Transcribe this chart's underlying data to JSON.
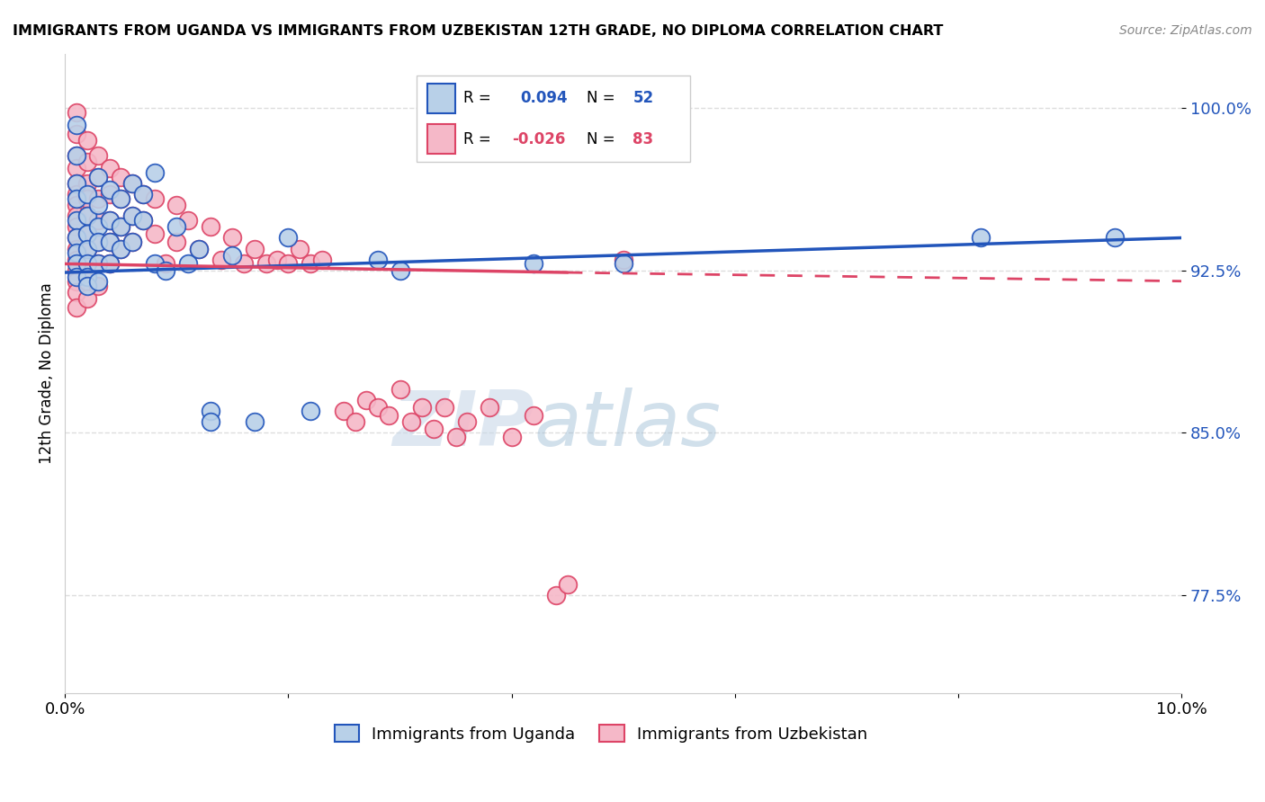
{
  "title": "IMMIGRANTS FROM UGANDA VS IMMIGRANTS FROM UZBEKISTAN 12TH GRADE, NO DIPLOMA CORRELATION CHART",
  "source": "Source: ZipAtlas.com",
  "ylabel": "12th Grade, No Diploma",
  "xlim": [
    0.0,
    0.1
  ],
  "ylim": [
    0.73,
    1.025
  ],
  "yticks": [
    0.775,
    0.85,
    0.925,
    1.0
  ],
  "ytick_labels": [
    "77.5%",
    "85.0%",
    "92.5%",
    "100.0%"
  ],
  "xticks": [
    0.0,
    0.02,
    0.04,
    0.06,
    0.08,
    0.1
  ],
  "xtick_labels": [
    "0.0%",
    "",
    "",
    "",
    "",
    "10.0%"
  ],
  "uganda_color": "#b8d0e8",
  "uzbekistan_color": "#f5b8c8",
  "uganda_line_color": "#2255bb",
  "uzbekistan_line_color": "#dd4466",
  "watermark_zip": "ZIP",
  "watermark_atlas": "atlas",
  "uganda_scatter": [
    [
      0.001,
      0.992
    ],
    [
      0.001,
      0.978
    ],
    [
      0.001,
      0.965
    ],
    [
      0.001,
      0.958
    ],
    [
      0.001,
      0.948
    ],
    [
      0.001,
      0.94
    ],
    [
      0.001,
      0.933
    ],
    [
      0.001,
      0.928
    ],
    [
      0.001,
      0.922
    ],
    [
      0.002,
      0.96
    ],
    [
      0.002,
      0.95
    ],
    [
      0.002,
      0.942
    ],
    [
      0.002,
      0.935
    ],
    [
      0.002,
      0.928
    ],
    [
      0.002,
      0.922
    ],
    [
      0.002,
      0.918
    ],
    [
      0.003,
      0.968
    ],
    [
      0.003,
      0.955
    ],
    [
      0.003,
      0.945
    ],
    [
      0.003,
      0.938
    ],
    [
      0.003,
      0.928
    ],
    [
      0.003,
      0.92
    ],
    [
      0.004,
      0.962
    ],
    [
      0.004,
      0.948
    ],
    [
      0.004,
      0.938
    ],
    [
      0.004,
      0.928
    ],
    [
      0.005,
      0.958
    ],
    [
      0.005,
      0.945
    ],
    [
      0.005,
      0.935
    ],
    [
      0.006,
      0.965
    ],
    [
      0.006,
      0.95
    ],
    [
      0.006,
      0.938
    ],
    [
      0.007,
      0.96
    ],
    [
      0.007,
      0.948
    ],
    [
      0.008,
      0.97
    ],
    [
      0.008,
      0.928
    ],
    [
      0.009,
      0.925
    ],
    [
      0.01,
      0.945
    ],
    [
      0.011,
      0.928
    ],
    [
      0.012,
      0.935
    ],
    [
      0.013,
      0.86
    ],
    [
      0.013,
      0.855
    ],
    [
      0.015,
      0.932
    ],
    [
      0.017,
      0.855
    ],
    [
      0.02,
      0.94
    ],
    [
      0.022,
      0.86
    ],
    [
      0.028,
      0.93
    ],
    [
      0.03,
      0.925
    ],
    [
      0.042,
      0.928
    ],
    [
      0.05,
      0.928
    ],
    [
      0.082,
      0.94
    ],
    [
      0.094,
      0.94
    ]
  ],
  "uzbekistan_scatter": [
    [
      0.001,
      0.998
    ],
    [
      0.001,
      0.988
    ],
    [
      0.001,
      0.978
    ],
    [
      0.001,
      0.972
    ],
    [
      0.001,
      0.965
    ],
    [
      0.001,
      0.96
    ],
    [
      0.001,
      0.955
    ],
    [
      0.001,
      0.95
    ],
    [
      0.001,
      0.945
    ],
    [
      0.001,
      0.94
    ],
    [
      0.001,
      0.935
    ],
    [
      0.001,
      0.93
    ],
    [
      0.001,
      0.925
    ],
    [
      0.001,
      0.92
    ],
    [
      0.001,
      0.915
    ],
    [
      0.001,
      0.908
    ],
    [
      0.002,
      0.985
    ],
    [
      0.002,
      0.975
    ],
    [
      0.002,
      0.965
    ],
    [
      0.002,
      0.958
    ],
    [
      0.002,
      0.95
    ],
    [
      0.002,
      0.942
    ],
    [
      0.002,
      0.935
    ],
    [
      0.002,
      0.928
    ],
    [
      0.002,
      0.92
    ],
    [
      0.002,
      0.912
    ],
    [
      0.003,
      0.978
    ],
    [
      0.003,
      0.968
    ],
    [
      0.003,
      0.958
    ],
    [
      0.003,
      0.948
    ],
    [
      0.003,
      0.938
    ],
    [
      0.003,
      0.928
    ],
    [
      0.003,
      0.918
    ],
    [
      0.004,
      0.972
    ],
    [
      0.004,
      0.96
    ],
    [
      0.004,
      0.948
    ],
    [
      0.004,
      0.938
    ],
    [
      0.004,
      0.928
    ],
    [
      0.005,
      0.968
    ],
    [
      0.005,
      0.958
    ],
    [
      0.005,
      0.945
    ],
    [
      0.005,
      0.935
    ],
    [
      0.006,
      0.965
    ],
    [
      0.006,
      0.95
    ],
    [
      0.006,
      0.938
    ],
    [
      0.007,
      0.96
    ],
    [
      0.007,
      0.948
    ],
    [
      0.008,
      0.958
    ],
    [
      0.008,
      0.942
    ],
    [
      0.009,
      0.928
    ],
    [
      0.01,
      0.955
    ],
    [
      0.01,
      0.938
    ],
    [
      0.011,
      0.948
    ],
    [
      0.012,
      0.935
    ],
    [
      0.013,
      0.945
    ],
    [
      0.014,
      0.93
    ],
    [
      0.015,
      0.94
    ],
    [
      0.016,
      0.928
    ],
    [
      0.017,
      0.935
    ],
    [
      0.018,
      0.928
    ],
    [
      0.019,
      0.93
    ],
    [
      0.02,
      0.928
    ],
    [
      0.021,
      0.935
    ],
    [
      0.022,
      0.928
    ],
    [
      0.023,
      0.93
    ],
    [
      0.025,
      0.86
    ],
    [
      0.026,
      0.855
    ],
    [
      0.027,
      0.865
    ],
    [
      0.028,
      0.862
    ],
    [
      0.029,
      0.858
    ],
    [
      0.03,
      0.87
    ],
    [
      0.031,
      0.855
    ],
    [
      0.032,
      0.862
    ],
    [
      0.033,
      0.852
    ],
    [
      0.034,
      0.862
    ],
    [
      0.035,
      0.848
    ],
    [
      0.036,
      0.855
    ],
    [
      0.038,
      0.862
    ],
    [
      0.04,
      0.848
    ],
    [
      0.042,
      0.858
    ],
    [
      0.044,
      0.775
    ],
    [
      0.045,
      0.78
    ],
    [
      0.05,
      0.93
    ]
  ]
}
